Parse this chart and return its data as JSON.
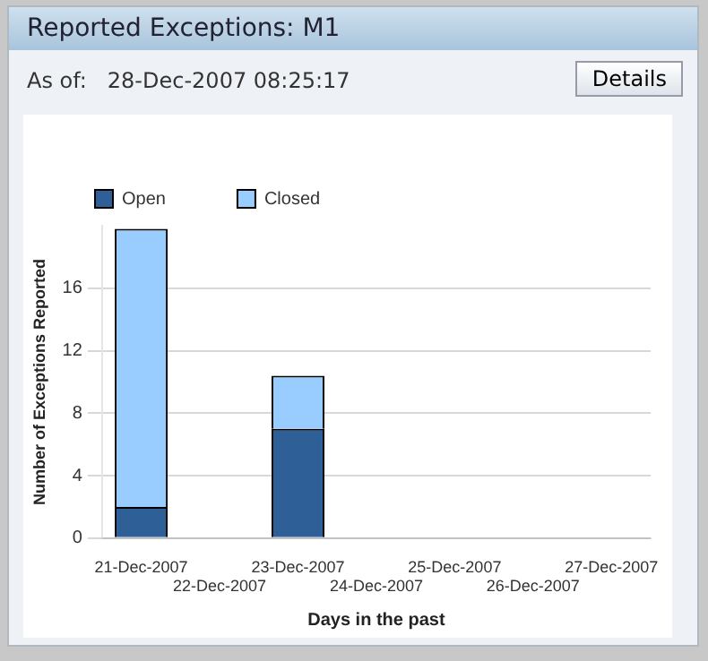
{
  "chart_data": {
    "type": "bar",
    "title": "Reported Exceptions: M1",
    "subtitle": "As of:   28-Dec-2007 08:25:17",
    "annotations": [
      "Details"
    ],
    "xlabel": "Days in the past",
    "ylabel": "Number of Exceptions Reported",
    "categories": [
      "21-Dec-2007",
      "22-Dec-2007",
      "23-Dec-2007",
      "24-Dec-2007",
      "25-Dec-2007",
      "26-Dec-2007",
      "27-Dec-2007"
    ],
    "series": [
      {
        "name": "Open",
        "color": "#2e5f96",
        "values": [
          2,
          0,
          7,
          0,
          0,
          0,
          0
        ]
      },
      {
        "name": "Closed",
        "color": "#99ccff",
        "values": [
          17.8,
          0,
          3.4,
          0,
          0,
          0,
          0
        ]
      }
    ],
    "stacked": true,
    "ylim": [
      0,
      20
    ],
    "yticks": [
      0,
      4,
      8,
      12,
      16
    ],
    "grid": "y",
    "legend": "top"
  }
}
